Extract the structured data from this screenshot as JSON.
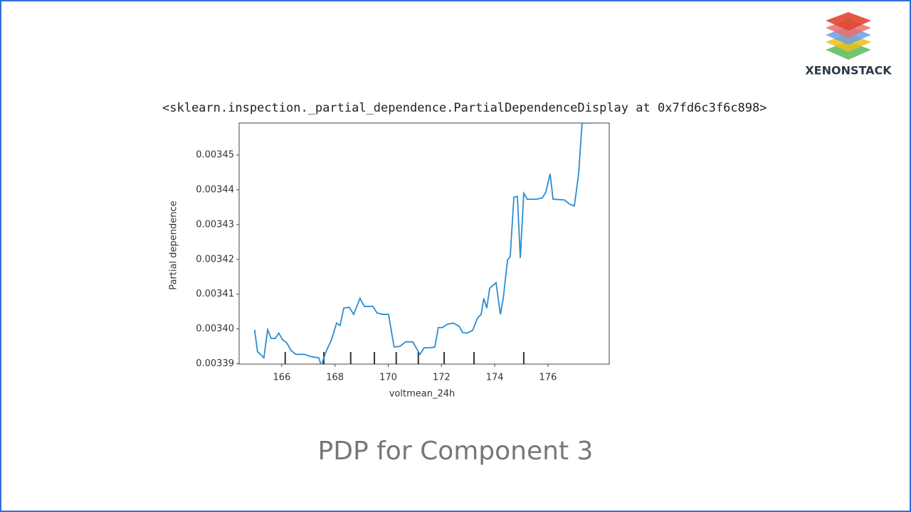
{
  "logo": {
    "text": "XENONSTACK"
  },
  "output_repr": "<sklearn.inspection._partial_dependence.PartialDependenceDisplay at 0x7fd6c3f6c898>",
  "caption": "PDP for Component 3",
  "chart_data": {
    "type": "line",
    "xlabel": "voltmean_24h",
    "ylabel": "Partial dependence",
    "color": "#2a8dd0",
    "x": [
      164.98,
      165.09,
      165.2,
      165.33,
      165.47,
      165.6,
      165.76,
      165.89,
      166.03,
      166.19,
      166.35,
      166.53,
      166.86,
      167.07,
      167.39,
      167.5,
      167.55,
      167.68,
      167.87,
      168.06,
      168.19,
      168.33,
      168.54,
      168.7,
      168.94,
      169.1,
      169.42,
      169.58,
      169.8,
      170.01,
      170.22,
      170.44,
      170.65,
      170.92,
      171.19,
      171.35,
      171.56,
      171.75,
      171.88,
      172.04,
      172.2,
      172.44,
      172.66,
      172.79,
      172.95,
      173.17,
      173.35,
      173.49,
      173.59,
      173.7,
      173.81,
      174.05,
      174.21,
      174.32,
      174.48,
      174.58,
      174.72,
      174.85,
      174.96,
      175.09,
      175.22,
      175.57,
      175.79,
      175.92,
      176.08,
      176.19,
      176.61,
      176.83,
      176.99,
      177.15,
      177.28,
      177.6
    ],
    "values": [
      0.0033998,
      0.0033935,
      0.0033927,
      0.0033917,
      0.0033998,
      0.0033973,
      0.0033973,
      0.0033988,
      0.0033969,
      0.003396,
      0.0033938,
      0.0033927,
      0.0033927,
      0.0033921,
      0.0033917,
      0.0033892,
      0.003391,
      0.0033938,
      0.0033969,
      0.0034017,
      0.003401,
      0.003406,
      0.0034062,
      0.0034042,
      0.0034088,
      0.0034065,
      0.0034065,
      0.0034046,
      0.0034042,
      0.0034042,
      0.0033948,
      0.003395,
      0.0033963,
      0.0033963,
      0.0033927,
      0.0033946,
      0.0033946,
      0.0033948,
      0.0034004,
      0.0034004,
      0.0034013,
      0.0034017,
      0.0034008,
      0.003399,
      0.0033988,
      0.0033996,
      0.0034031,
      0.0034042,
      0.0034088,
      0.003406,
      0.0034117,
      0.0034133,
      0.0034042,
      0.0034088,
      0.0034198,
      0.0034208,
      0.0034379,
      0.0034381,
      0.0034204,
      0.003439,
      0.0034373,
      0.0034373,
      0.0034377,
      0.0034394,
      0.0034446,
      0.0034373,
      0.0034371,
      0.0034358,
      0.0034354,
      0.0034445,
      0.0034592,
      0.0034592
    ],
    "deciles": [
      166.13,
      167.58,
      168.59,
      169.48,
      170.3,
      171.13,
      172.1,
      173.22,
      175.09
    ],
    "xlim": [
      164.4,
      178.3
    ],
    "ylim": [
      0.0033899,
      0.0034592
    ],
    "xticks": [
      166,
      168,
      170,
      172,
      174,
      176
    ],
    "yticks": [
      0.00339,
      {
        "value": 0.0034,
        "label": "0.00340"
      },
      0.00341,
      0.00342,
      0.00343,
      0.00344,
      0.00345
    ],
    "grid": false
  }
}
